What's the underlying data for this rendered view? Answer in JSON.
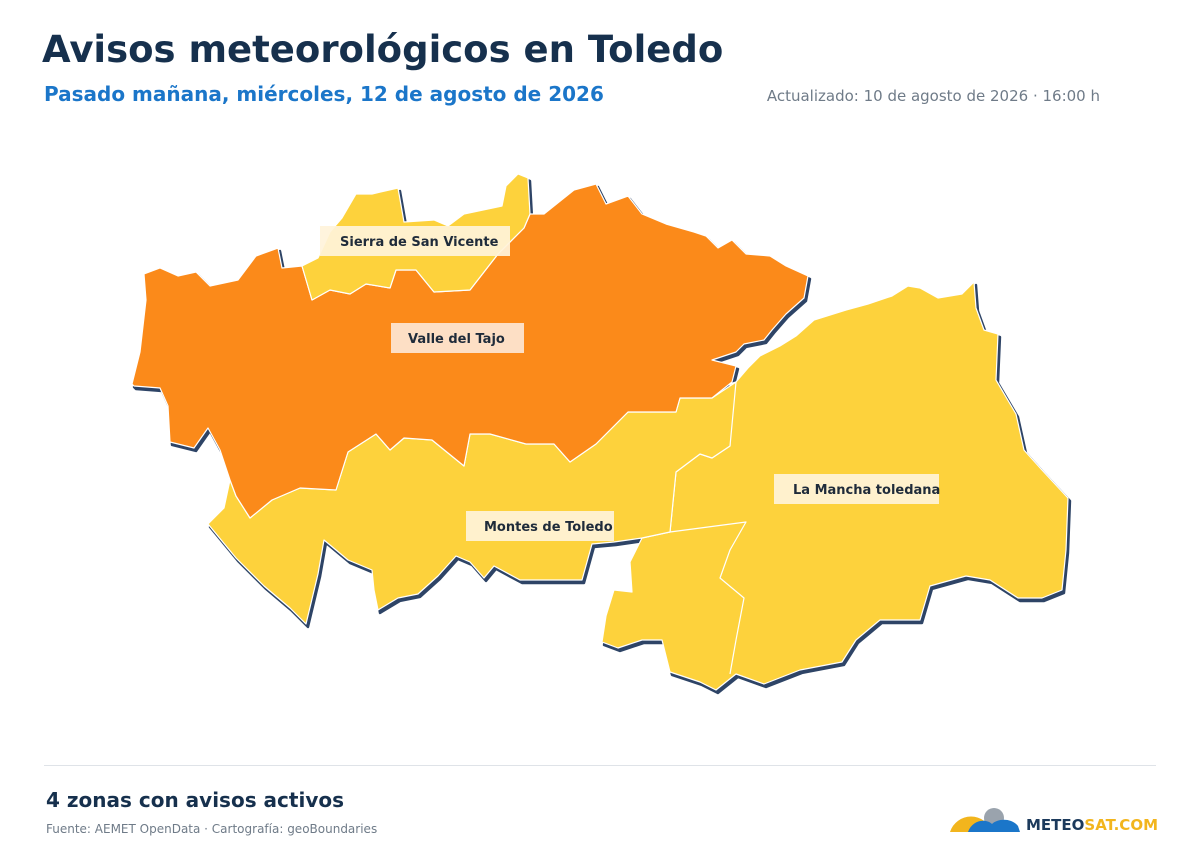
{
  "header": {
    "title": "Avisos meteorológicos en Toledo",
    "subtitle": "Pasado mañana, miércoles, 12 de agosto de 2026",
    "updated": "Actualizado: 10 de agosto de 2026 · 16:00 h"
  },
  "colors": {
    "warning_yellow": "#fdd23c",
    "warning_orange": "#fb8a1a",
    "border_dark": "#2e4466",
    "title": "#16304d",
    "subtitle": "#1b76c9"
  },
  "zones": [
    {
      "name": "Sierra de San Vicente",
      "level": "yellow"
    },
    {
      "name": "Valle del Tajo",
      "level": "orange"
    },
    {
      "name": "Montes de Toledo",
      "level": "yellow"
    },
    {
      "name": "La Mancha toledana",
      "level": "yellow"
    }
  ],
  "footer": {
    "summary": "4 zonas con avisos activos",
    "source": "Fuente: AEMET OpenData · Cartografía: geoBoundaries"
  },
  "logo": {
    "part1": "METEO",
    "part2": "SAT.COM",
    "icon": "sun-cloud-logo-icon"
  }
}
